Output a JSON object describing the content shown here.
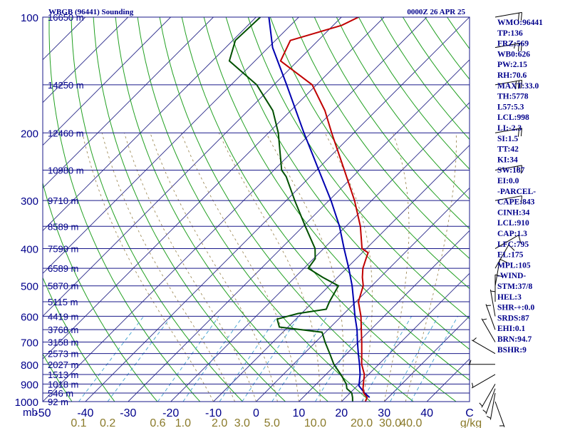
{
  "header": {
    "station": "WBGB (96441) Sounding",
    "time": "0000Z 26 APR 25"
  },
  "indices": [
    "WMO:96441",
    "TP:136",
    "FRZ:569",
    "WB0:626",
    "PW:2.15",
    "RH:70.6",
    "MAXT:33.0",
    "TH:5778",
    "L57:5.3",
    "LCL:998",
    "LI:-2.3",
    "SI:1.5",
    "TT:42",
    "KI:34",
    "SW:187",
    "EI:0.0",
    "-PARCEL-",
    "CAPE:843",
    "CINH:34",
    "LCL:910",
    "CAP:1.3",
    "LFC:795",
    "EL:175",
    "MPL:105",
    "-WIND-",
    "STM:37/8",
    "HEL:3",
    "SHR-+:0.0",
    "SRDS:87",
    "EHI:0.1",
    "BRN:94.7",
    "BSHR:9"
  ],
  "colors": {
    "isobar": "#1a1a8a",
    "isotherm": "#2a2a8a",
    "dry_adiabat": "#22a022",
    "moist_adiabat": "#a08c5a",
    "mixing_ratio": "#3fa0d0",
    "temperature": "#c00000",
    "dewpoint": "#005000",
    "parcel": "#0000b0",
    "wind_barb": "#000000"
  },
  "chart_data": {
    "type": "skew-t log-p sounding",
    "pressure_axis": {
      "scale": "log",
      "range_hPa": [
        1000,
        100
      ],
      "tick_labels": [
        "100",
        "200",
        "300",
        "400",
        "500",
        "600",
        "700",
        "800",
        "900",
        "1000",
        "mb"
      ]
    },
    "temperature_axis": {
      "unit": "C",
      "range": [
        -50,
        50
      ],
      "tick_labels": [
        "-50",
        "-40",
        "-30",
        "-20",
        "-10",
        "0",
        "10",
        "20",
        "30",
        "40",
        "C"
      ]
    },
    "mixing_ratio_axis": {
      "unit": "g/kg",
      "tick_labels": [
        "0.1",
        "0.2",
        "0.6",
        "1.0",
        "2.0",
        "3.0",
        "5.0",
        "10.0",
        "20.0",
        "30.0",
        "40.0",
        "g/kg"
      ],
      "values": [
        0.1,
        0.2,
        0.6,
        1.0,
        2.0,
        3.0,
        5.0,
        10.0,
        20.0,
        30.0,
        40.0
      ]
    },
    "height_labels": [
      {
        "p": 100,
        "label": "16650 m"
      },
      {
        "p": 150,
        "label": "14250 m"
      },
      {
        "p": 200,
        "label": "12460 m"
      },
      {
        "p": 250,
        "label": "10980 m"
      },
      {
        "p": 300,
        "label": "9710 m"
      },
      {
        "p": 350,
        "label": "8589 m"
      },
      {
        "p": 400,
        "label": "7590 m"
      },
      {
        "p": 450,
        "label": "6589 m"
      },
      {
        "p": 500,
        "label": "5870 m"
      },
      {
        "p": 550,
        "label": "5115 m"
      },
      {
        "p": 600,
        "label": "4419 m"
      },
      {
        "p": 650,
        "label": "3768 m"
      },
      {
        "p": 700,
        "label": "3158 m"
      },
      {
        "p": 750,
        "label": "2573 m"
      },
      {
        "p": 800,
        "label": "2027 m"
      },
      {
        "p": 850,
        "label": "1513 m"
      },
      {
        "p": 900,
        "label": "1018 m"
      },
      {
        "p": 950,
        "label": "546 m"
      },
      {
        "p": 1000,
        "label": "92 m"
      }
    ],
    "dry_adiabats_K": [
      220,
      230,
      240,
      250,
      260,
      270,
      280,
      290,
      300,
      310,
      320,
      330,
      340,
      350,
      360,
      370,
      380,
      390,
      400,
      410,
      420,
      430,
      440,
      450,
      460,
      470,
      480,
      490,
      500
    ],
    "moist_adiabats_C": [
      -10,
      -5,
      0,
      5,
      10,
      15,
      20,
      25,
      30,
      35
    ],
    "temperature": [
      {
        "p": 1000,
        "t": 25.6
      },
      {
        "p": 975,
        "t": 25.0
      },
      {
        "p": 950,
        "t": 23.2
      },
      {
        "p": 925,
        "t": 22.0
      },
      {
        "p": 900,
        "t": 21.0
      },
      {
        "p": 850,
        "t": 19.0
      },
      {
        "p": 800,
        "t": 16.0
      },
      {
        "p": 750,
        "t": 13.5
      },
      {
        "p": 700,
        "t": 10.8
      },
      {
        "p": 650,
        "t": 7.8
      },
      {
        "p": 600,
        "t": 4.6
      },
      {
        "p": 550,
        "t": 0.6
      },
      {
        "p": 500,
        "t": -2.0
      },
      {
        "p": 475,
        "t": -4.2
      },
      {
        "p": 450,
        "t": -6.2
      },
      {
        "p": 420,
        "t": -8.0
      },
      {
        "p": 410,
        "t": -8.6
      },
      {
        "p": 400,
        "t": -11.0
      },
      {
        "p": 350,
        "t": -16.6
      },
      {
        "p": 300,
        "t": -24.0
      },
      {
        "p": 250,
        "t": -33.5
      },
      {
        "p": 200,
        "t": -45.2
      },
      {
        "p": 175,
        "t": -52.0
      },
      {
        "p": 150,
        "t": -61.0
      },
      {
        "p": 130,
        "t": -74.0
      },
      {
        "p": 115,
        "t": -76.5
      },
      {
        "p": 105,
        "t": -68.0
      },
      {
        "p": 100,
        "t": -66.0
      }
    ],
    "dewpoint": [
      {
        "p": 1000,
        "t": 22.6
      },
      {
        "p": 975,
        "t": 21.6
      },
      {
        "p": 950,
        "t": 20.4
      },
      {
        "p": 925,
        "t": 18.2
      },
      {
        "p": 900,
        "t": 17.0
      },
      {
        "p": 850,
        "t": 13.5
      },
      {
        "p": 800,
        "t": 9.5
      },
      {
        "p": 750,
        "t": 6.0
      },
      {
        "p": 700,
        "t": 2.2
      },
      {
        "p": 660,
        "t": -0.8
      },
      {
        "p": 640,
        "t": -12.0
      },
      {
        "p": 610,
        "t": -14.4
      },
      {
        "p": 590,
        "t": -10.8
      },
      {
        "p": 575,
        "t": -5.2
      },
      {
        "p": 550,
        "t": -6.2
      },
      {
        "p": 500,
        "t": -7.8
      },
      {
        "p": 475,
        "t": -13.5
      },
      {
        "p": 450,
        "t": -19.0
      },
      {
        "p": 425,
        "t": -19.6
      },
      {
        "p": 400,
        "t": -22.0
      },
      {
        "p": 350,
        "t": -29.5
      },
      {
        "p": 300,
        "t": -38.0
      },
      {
        "p": 260,
        "t": -45.6
      },
      {
        "p": 250,
        "t": -48.2
      },
      {
        "p": 200,
        "t": -57.7
      },
      {
        "p": 175,
        "t": -64.2
      },
      {
        "p": 150,
        "t": -74.0
      },
      {
        "p": 130,
        "t": -86.0
      },
      {
        "p": 115,
        "t": -89.4
      },
      {
        "p": 100,
        "t": -89.0
      }
    ],
    "parcel": [
      {
        "p": 975,
        "t": 25.6
      },
      {
        "p": 950,
        "t": 23.4
      },
      {
        "p": 910,
        "t": 20.4
      },
      {
        "p": 850,
        "t": 18.0
      },
      {
        "p": 800,
        "t": 15.5
      },
      {
        "p": 750,
        "t": 12.7
      },
      {
        "p": 700,
        "t": 9.8
      },
      {
        "p": 650,
        "t": 6.8
      },
      {
        "p": 600,
        "t": 3.2
      },
      {
        "p": 550,
        "t": -0.5
      },
      {
        "p": 500,
        "t": -4.6
      },
      {
        "p": 450,
        "t": -9.5
      },
      {
        "p": 400,
        "t": -15.2
      },
      {
        "p": 350,
        "t": -21.5
      },
      {
        "p": 300,
        "t": -29.5
      },
      {
        "p": 250,
        "t": -39.5
      },
      {
        "p": 200,
        "t": -51.7
      },
      {
        "p": 150,
        "t": -67.0
      },
      {
        "p": 120,
        "t": -79.0
      },
      {
        "p": 100,
        "t": -87.0
      }
    ],
    "wind_profile": [
      {
        "p": 1000,
        "dir": 160,
        "spd": 5
      },
      {
        "p": 950,
        "dir": 190,
        "spd": 5
      },
      {
        "p": 925,
        "dir": 200,
        "spd": 5
      },
      {
        "p": 900,
        "dir": 210,
        "spd": 5
      },
      {
        "p": 850,
        "dir": 240,
        "spd": 5
      },
      {
        "p": 800,
        "dir": 270,
        "spd": 5
      },
      {
        "p": 750,
        "dir": 300,
        "spd": 5
      },
      {
        "p": 700,
        "dir": 330,
        "spd": 5
      },
      {
        "p": 650,
        "dir": 340,
        "spd": 5
      },
      {
        "p": 600,
        "dir": 350,
        "spd": 5
      },
      {
        "p": 550,
        "dir": 0,
        "spd": 10
      },
      {
        "p": 500,
        "dir": 10,
        "spd": 10
      },
      {
        "p": 450,
        "dir": 30,
        "spd": 10
      },
      {
        "p": 400,
        "dir": 60,
        "spd": 10
      },
      {
        "p": 300,
        "dir": 80,
        "spd": 10
      },
      {
        "p": 250,
        "dir": 80,
        "spd": 15
      },
      {
        "p": 200,
        "dir": 80,
        "spd": 20
      },
      {
        "p": 150,
        "dir": 80,
        "spd": 30
      },
      {
        "p": 120,
        "dir": 80,
        "spd": 25
      },
      {
        "p": 100,
        "dir": 80,
        "spd": 20
      }
    ]
  }
}
